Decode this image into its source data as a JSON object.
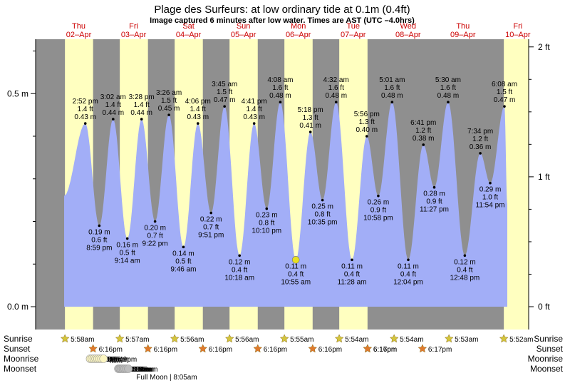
{
  "chart_data": {
    "type": "area",
    "title": "Plage des Surfeurs: at low  ordinary tide at 0.1m (0.4ft)",
    "subtitle": "Image captured 6 minutes after low water. Times are AST (UTC –4.0hrs)",
    "y_ticks_m": [
      "0.5 m",
      "0.0 m"
    ],
    "y_ticks_ft": [
      "2 ft",
      "1 ft",
      "0 ft"
    ],
    "ylim_m": [
      0,
      0.6
    ],
    "days": [
      {
        "dow": "Thu",
        "date": "02–Apr"
      },
      {
        "dow": "Fri",
        "date": "03–Apr"
      },
      {
        "dow": "Sat",
        "date": "04–Apr"
      },
      {
        "dow": "Sun",
        "date": "05–Apr"
      },
      {
        "dow": "Mon",
        "date": "06–Apr"
      },
      {
        "dow": "Tue",
        "date": "07–Apr"
      },
      {
        "dow": "Wed",
        "date": "08–Apr"
      },
      {
        "dow": "Thu",
        "date": "09–Apr"
      },
      {
        "dow": "Fri",
        "date": "10–Apr"
      }
    ],
    "tides": [
      {
        "time": "2:52 pm",
        "ft": "1.4 ft",
        "m": "0.43 m",
        "v": 0.43,
        "kind": "high"
      },
      {
        "time": "8:59 pm",
        "ft": "0.6 ft",
        "m": "0.19 m",
        "v": 0.19,
        "kind": "low"
      },
      {
        "time": "3:02 am",
        "ft": "1.4 ft",
        "m": "0.44 m",
        "v": 0.44,
        "kind": "high"
      },
      {
        "time": "9:14 am",
        "ft": "0.5 ft",
        "m": "0.16 m",
        "v": 0.16,
        "kind": "low"
      },
      {
        "time": "3:28 pm",
        "ft": "1.4 ft",
        "m": "0.44 m",
        "v": 0.44,
        "kind": "high"
      },
      {
        "time": "9:22 pm",
        "ft": "0.7 ft",
        "m": "0.20 m",
        "v": 0.2,
        "kind": "low"
      },
      {
        "time": "3:26 am",
        "ft": "1.5 ft",
        "m": "0.45 m",
        "v": 0.45,
        "kind": "high"
      },
      {
        "time": "9:46 am",
        "ft": "0.5 ft",
        "m": "0.14 m",
        "v": 0.14,
        "kind": "low"
      },
      {
        "time": "4:06 pm",
        "ft": "1.4 ft",
        "m": "0.43 m",
        "v": 0.43,
        "kind": "high"
      },
      {
        "time": "9:51 pm",
        "ft": "0.7 ft",
        "m": "0.22 m",
        "v": 0.22,
        "kind": "low"
      },
      {
        "time": "3:45 am",
        "ft": "1.5 ft",
        "m": "0.47 m",
        "v": 0.47,
        "kind": "high"
      },
      {
        "time": "10:18 am",
        "ft": "0.4 ft",
        "m": "0.12 m",
        "v": 0.12,
        "kind": "low"
      },
      {
        "time": "4:41 pm",
        "ft": "1.4 ft",
        "m": "0.43 m",
        "v": 0.43,
        "kind": "high"
      },
      {
        "time": "10:10 pm",
        "ft": "0.8 ft",
        "m": "0.23 m",
        "v": 0.23,
        "kind": "low"
      },
      {
        "time": "4:08 am",
        "ft": "1.6 ft",
        "m": "0.48 m",
        "v": 0.48,
        "kind": "high"
      },
      {
        "time": "10:55 am",
        "ft": "0.4 ft",
        "m": "0.11 m",
        "v": 0.11,
        "kind": "low"
      },
      {
        "time": "5:18 pm",
        "ft": "1.3 ft",
        "m": "0.41 m",
        "v": 0.41,
        "kind": "high"
      },
      {
        "time": "10:35 pm",
        "ft": "0.8 ft",
        "m": "0.25 m",
        "v": 0.25,
        "kind": "low"
      },
      {
        "time": "4:32 am",
        "ft": "1.6 ft",
        "m": "0.48 m",
        "v": 0.48,
        "kind": "high"
      },
      {
        "time": "11:28 am",
        "ft": "0.4 ft",
        "m": "0.11 m",
        "v": 0.11,
        "kind": "low"
      },
      {
        "time": "5:56 pm",
        "ft": "1.3 ft",
        "m": "0.40 m",
        "v": 0.4,
        "kind": "high"
      },
      {
        "time": "10:58 pm",
        "ft": "0.9 ft",
        "m": "0.26 m",
        "v": 0.26,
        "kind": "low"
      },
      {
        "time": "5:01 am",
        "ft": "1.6 ft",
        "m": "0.48 m",
        "v": 0.48,
        "kind": "high"
      },
      {
        "time": "12:04 pm",
        "ft": "0.4 ft",
        "m": "0.11 m",
        "v": 0.11,
        "kind": "low"
      },
      {
        "time": "6:41 pm",
        "ft": "1.2 ft",
        "m": "0.38 m",
        "v": 0.38,
        "kind": "high"
      },
      {
        "time": "11:27 pm",
        "ft": "0.9 ft",
        "m": "0.28 m",
        "v": 0.28,
        "kind": "low"
      },
      {
        "time": "5:30 am",
        "ft": "1.6 ft",
        "m": "0.48 m",
        "v": 0.48,
        "kind": "high"
      },
      {
        "time": "12:48 pm",
        "ft": "0.4 ft",
        "m": "0.12 m",
        "v": 0.12,
        "kind": "low"
      },
      {
        "time": "7:34 pm",
        "ft": "1.2 ft",
        "m": "0.36 m",
        "v": 0.36,
        "kind": "high"
      },
      {
        "time": "11:54 pm",
        "ft": "1.0 ft",
        "m": "0.29 m",
        "v": 0.29,
        "kind": "low"
      },
      {
        "time": "6:08 am",
        "ft": "1.5 ft",
        "m": "0.47 m",
        "v": 0.47,
        "kind": "high"
      }
    ],
    "rows": {
      "sunrise": {
        "label": "Sunrise",
        "times": [
          "5:58am",
          "5:57am",
          "5:56am",
          "5:56am",
          "5:55am",
          "5:54am",
          "5:54am",
          "5:53am",
          "5:52am"
        ]
      },
      "sunset": {
        "label": "Sunset",
        "times": [
          "6:16pm",
          "6:16pm",
          "6:16pm",
          "6:16pm",
          "6:16pm",
          "6:16pm",
          "6:17pm",
          "6:17pm"
        ]
      },
      "moonrise": {
        "label": "Moonrise",
        "times": [
          "4:58pm",
          "5:45pm",
          "6:33pm",
          "7:22pm",
          "8:12pm",
          "9:03pm",
          "9:55pm",
          "10:49pm"
        ]
      },
      "moonset": {
        "label": "Moonset",
        "times": [
          "5:19am",
          "5:58am",
          "6:37am",
          "7:19am",
          "8:03am",
          "8:50am",
          "9:40am"
        ]
      }
    },
    "full_moon": "Full Moon | 8:05am",
    "colors": {
      "night": "#8f8f8f",
      "day": "#ffffc0",
      "water": "#a2aef7",
      "axis_bg": "#ffffff",
      "day_label": "#cc0000",
      "sun": "#d4c53c",
      "sunset": "#e07a2c",
      "moon": "#fbf5c0",
      "moonset": "#bdbdbd",
      "marker": "#e8e020"
    }
  }
}
